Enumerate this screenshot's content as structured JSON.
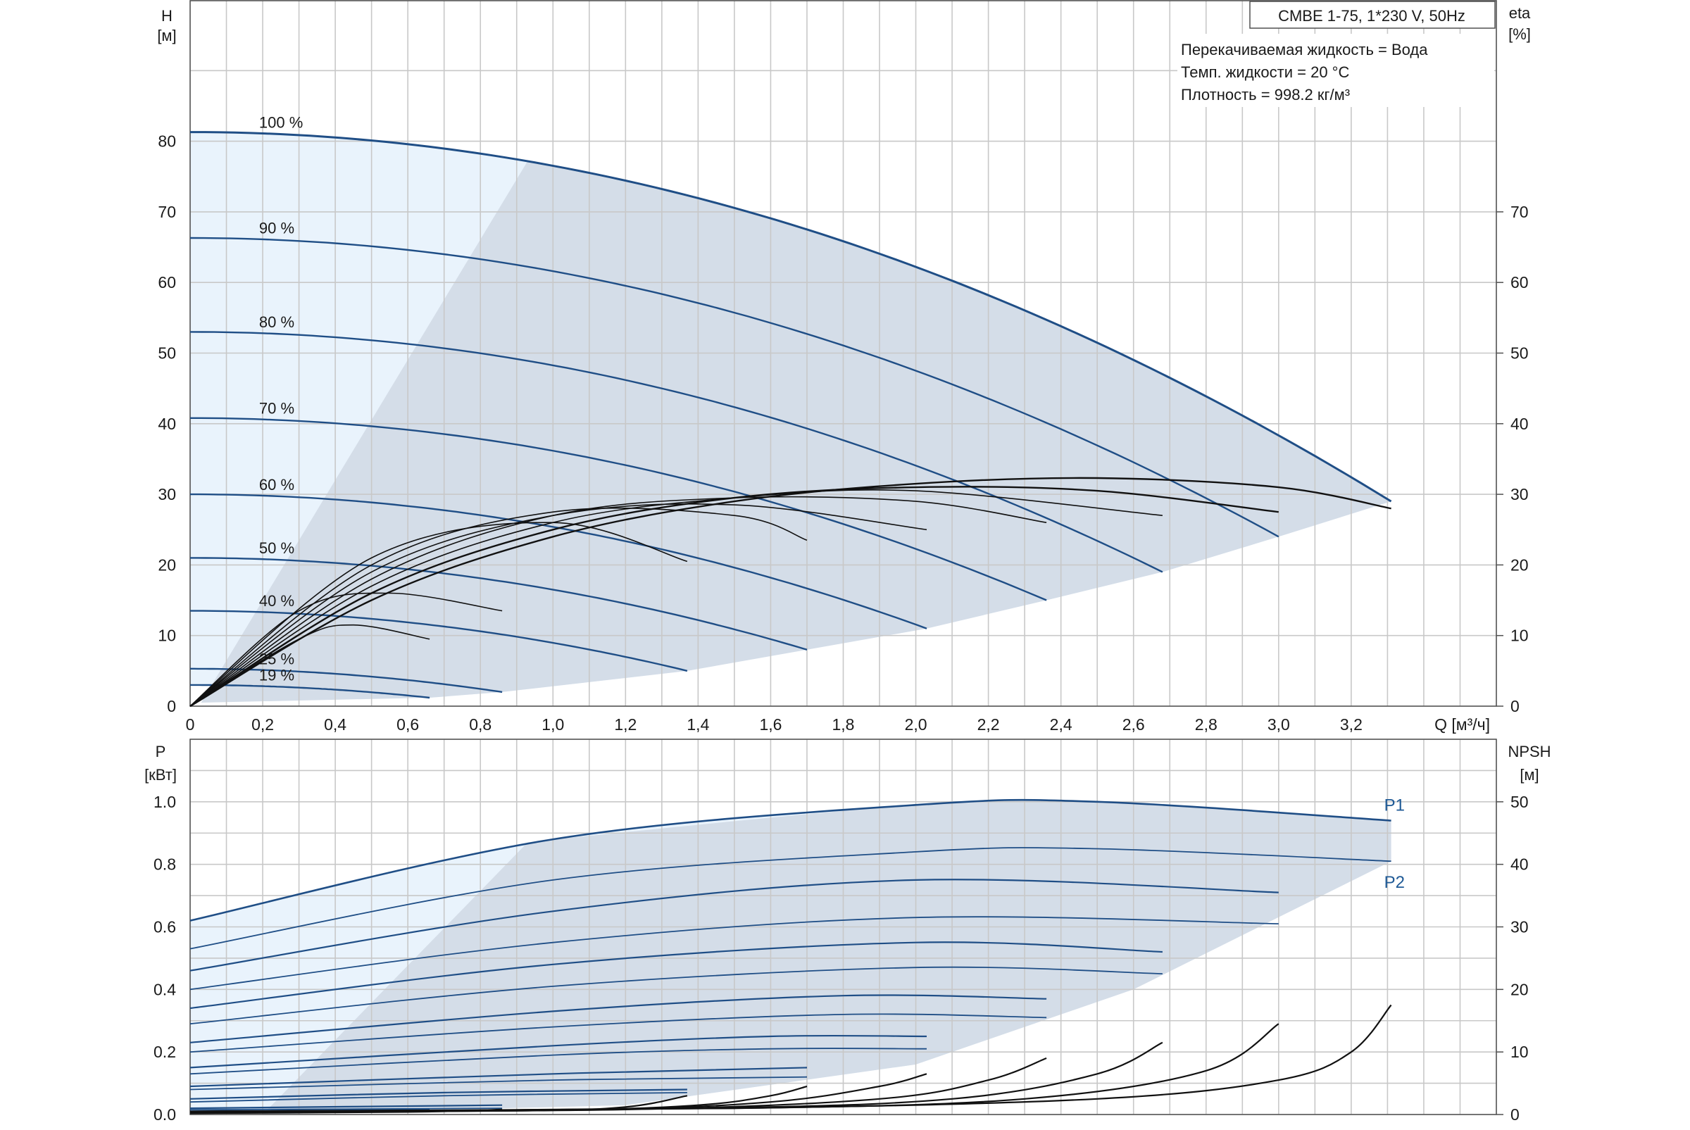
{
  "chart_data": [
    {
      "type": "line",
      "panel": "head-and-efficiency",
      "info": {
        "model": "CMBE 1-75, 1*230 V, 50Hz",
        "lines": [
          "Перекачиваемая жидкость = Вода",
          "Темп. жидкости = 20 °C",
          "Плотность = 998.2 кг/м³"
        ]
      },
      "y_left_label": [
        "H",
        "[м]"
      ],
      "y_right_label": [
        "eta",
        "[%]"
      ],
      "xlabel": "Q [м³/ч]",
      "xlim": [
        0,
        3.6
      ],
      "ylim": [
        0,
        100
      ],
      "x_ticks": [
        "0",
        "0,2",
        "0,4",
        "0,6",
        "0,8",
        "1,0",
        "1,2",
        "1,4",
        "1,6",
        "1,8",
        "2,0",
        "2,2",
        "2,4",
        "2,6",
        "2,8",
        "3,0",
        "3,2"
      ],
      "x_tick_values": [
        0,
        0.2,
        0.4,
        0.6,
        0.8,
        1.0,
        1.2,
        1.4,
        1.6,
        1.8,
        2.0,
        2.2,
        2.4,
        2.6,
        2.8,
        3.0,
        3.2
      ],
      "y_left_ticks": [
        0,
        10,
        20,
        30,
        40,
        50,
        60,
        70,
        80
      ],
      "y_right_ticks": [
        0,
        10,
        20,
        30,
        40,
        50,
        60,
        70
      ],
      "grid": true,
      "head_curves": [
        {
          "label": "100 %",
          "h0": 81.3,
          "qmax": 3.31,
          "hend": 29.0
        },
        {
          "label": "90 %",
          "h0": 66.3,
          "qmax": 3.0,
          "hend": 24.0
        },
        {
          "label": "80 %",
          "h0": 53.0,
          "qmax": 2.68,
          "hend": 19.0
        },
        {
          "label": "70 %",
          "h0": 40.8,
          "qmax": 2.36,
          "hend": 15.0
        },
        {
          "label": "60 %",
          "h0": 30.0,
          "qmax": 2.03,
          "hend": 11.0
        },
        {
          "label": "50 %",
          "h0": 21.0,
          "qmax": 1.7,
          "hend": 8.0
        },
        {
          "label": "40 %",
          "h0": 13.5,
          "qmax": 1.37,
          "hend": 5.0
        },
        {
          "label": "25 %",
          "h0": 5.3,
          "qmax": 0.86,
          "hend": 2.0
        },
        {
          "label": "19 %",
          "h0": 3.0,
          "qmax": 0.66,
          "hend": 1.2
        }
      ],
      "efficiency_curves": [
        {
          "name": "eta 100 %",
          "points": [
            [
              0,
              0
            ],
            [
              0.5,
              15
            ],
            [
              1.0,
              24
            ],
            [
              1.5,
              29
            ],
            [
              2.0,
              31.5
            ],
            [
              2.5,
              32.3
            ],
            [
              3.0,
              31
            ],
            [
              3.31,
              28
            ]
          ]
        },
        {
          "name": "eta 90 %",
          "points": [
            [
              0,
              0
            ],
            [
              0.5,
              16
            ],
            [
              1.0,
              25
            ],
            [
              1.5,
              29.5
            ],
            [
              2.0,
              31
            ],
            [
              2.5,
              30.5
            ],
            [
              3.0,
              27.5
            ]
          ]
        },
        {
          "name": "eta 80 %",
          "points": [
            [
              0,
              0
            ],
            [
              0.5,
              17
            ],
            [
              1.0,
              26
            ],
            [
              1.5,
              29.5
            ],
            [
              2.0,
              30.5
            ],
            [
              2.68,
              27
            ]
          ]
        },
        {
          "name": "eta 70 %",
          "points": [
            [
              0,
              0
            ],
            [
              0.5,
              18
            ],
            [
              1.0,
              27
            ],
            [
              1.5,
              29.5
            ],
            [
              2.0,
              29
            ],
            [
              2.36,
              26
            ]
          ]
        },
        {
          "name": "eta 60 %",
          "points": [
            [
              0,
              0
            ],
            [
              0.5,
              19
            ],
            [
              1.0,
              27
            ],
            [
              1.5,
              28.5
            ],
            [
              2.03,
              25
            ]
          ]
        },
        {
          "name": "eta 50 %",
          "points": [
            [
              0,
              0
            ],
            [
              0.5,
              20
            ],
            [
              1.0,
              27.5
            ],
            [
              1.5,
              27
            ],
            [
              1.7,
              23.5
            ]
          ]
        },
        {
          "name": "eta 40 %",
          "points": [
            [
              0,
              0
            ],
            [
              0.5,
              21
            ],
            [
              1.0,
              26
            ],
            [
              1.37,
              20.5
            ]
          ]
        },
        {
          "name": "eta 25 %",
          "points": [
            [
              0,
              0
            ],
            [
              0.3,
              13.5
            ],
            [
              0.55,
              16
            ],
            [
              0.86,
              13.5
            ]
          ]
        },
        {
          "name": "eta 19 %",
          "points": [
            [
              0,
              0
            ],
            [
              0.3,
              9.5
            ],
            [
              0.45,
              11.5
            ],
            [
              0.66,
              9.5
            ]
          ]
        }
      ]
    },
    {
      "type": "line",
      "panel": "power-and-npsh",
      "y_left_label": [
        "P",
        "[кВт]"
      ],
      "y_right_label": [
        "NPSH",
        "[м]"
      ],
      "xlim": [
        0,
        3.6
      ],
      "ylim": [
        0,
        1.2
      ],
      "y_left_ticks": [
        "0.0",
        "0.2",
        "0.4",
        "0.6",
        "0.8",
        "1.0"
      ],
      "y_left_tick_values": [
        0,
        0.2,
        0.4,
        0.6,
        0.8,
        1.0
      ],
      "y_right_ticks": [
        0,
        10,
        20,
        30,
        40,
        50
      ],
      "grid": true,
      "series_labels": {
        "p1": "P1",
        "p2": "P2"
      },
      "power_curves": [
        {
          "speed": "100 %",
          "p1": [
            [
              0,
              0.62
            ],
            [
              1.0,
              0.88
            ],
            [
              2.0,
              0.99
            ],
            [
              2.5,
              1.0
            ],
            [
              3.31,
              0.94
            ]
          ],
          "p2": [
            [
              0,
              0.53
            ],
            [
              1.0,
              0.75
            ],
            [
              2.0,
              0.84
            ],
            [
              2.5,
              0.85
            ],
            [
              3.31,
              0.81
            ]
          ]
        },
        {
          "speed": "90 %",
          "p1": [
            [
              0,
              0.46
            ],
            [
              1.0,
              0.65
            ],
            [
              2.0,
              0.75
            ],
            [
              3.0,
              0.71
            ]
          ],
          "p2": [
            [
              0,
              0.4
            ],
            [
              1.0,
              0.55
            ],
            [
              2.0,
              0.63
            ],
            [
              3.0,
              0.61
            ]
          ]
        },
        {
          "speed": "80 %",
          "p1": [
            [
              0,
              0.34
            ],
            [
              1.0,
              0.48
            ],
            [
              2.0,
              0.55
            ],
            [
              2.68,
              0.52
            ]
          ],
          "p2": [
            [
              0,
              0.29
            ],
            [
              1.0,
              0.41
            ],
            [
              2.0,
              0.47
            ],
            [
              2.68,
              0.45
            ]
          ]
        },
        {
          "speed": "70 %",
          "p1": [
            [
              0,
              0.23
            ],
            [
              1.0,
              0.33
            ],
            [
              1.8,
              0.38
            ],
            [
              2.36,
              0.37
            ]
          ],
          "p2": [
            [
              0,
              0.2
            ],
            [
              1.0,
              0.28
            ],
            [
              1.8,
              0.32
            ],
            [
              2.36,
              0.31
            ]
          ]
        },
        {
          "speed": "60 %",
          "p1": [
            [
              0,
              0.15
            ],
            [
              1.0,
              0.22
            ],
            [
              1.6,
              0.25
            ],
            [
              2.03,
              0.25
            ]
          ],
          "p2": [
            [
              0,
              0.13
            ],
            [
              1.0,
              0.19
            ],
            [
              1.6,
              0.21
            ],
            [
              2.03,
              0.21
            ]
          ]
        },
        {
          "speed": "50 %",
          "p1": [
            [
              0,
              0.09
            ],
            [
              1.0,
              0.13
            ],
            [
              1.7,
              0.15
            ]
          ],
          "p2": [
            [
              0,
              0.08
            ],
            [
              1.0,
              0.11
            ],
            [
              1.7,
              0.12
            ]
          ]
        },
        {
          "speed": "40 %",
          "p1": [
            [
              0,
              0.05
            ],
            [
              0.7,
              0.07
            ],
            [
              1.37,
              0.08
            ]
          ],
          "p2": [
            [
              0,
              0.04
            ],
            [
              0.7,
              0.06
            ],
            [
              1.37,
              0.07
            ]
          ]
        },
        {
          "speed": "25 %",
          "p1": [
            [
              0,
              0.02
            ],
            [
              0.86,
              0.03
            ]
          ],
          "p2": [
            [
              0,
              0.015
            ],
            [
              0.86,
              0.02
            ]
          ]
        },
        {
          "speed": "19 %",
          "p1": [
            [
              0,
              0.01
            ],
            [
              0.66,
              0.015
            ]
          ],
          "p2": [
            [
              0,
              0.008
            ],
            [
              0.66,
              0.012
            ]
          ]
        }
      ],
      "npsh_curves": [
        {
          "speed": "100 %",
          "points": [
            [
              0,
              0.5
            ],
            [
              1.5,
              1.0
            ],
            [
              2.5,
              2.5
            ],
            [
              3.0,
              5.5
            ],
            [
              3.2,
              10
            ],
            [
              3.31,
              17.5
            ]
          ]
        },
        {
          "speed": "90 %",
          "points": [
            [
              0,
              0.5
            ],
            [
              1.5,
              1.0
            ],
            [
              2.3,
              2.5
            ],
            [
              2.8,
              7
            ],
            [
              3.0,
              14.5
            ]
          ]
        },
        {
          "speed": "80 %",
          "points": [
            [
              0,
              0.5
            ],
            [
              1.4,
              1.0
            ],
            [
              2.1,
              2.5
            ],
            [
              2.5,
              6.5
            ],
            [
              2.68,
              11.5
            ]
          ]
        },
        {
          "speed": "70 %",
          "points": [
            [
              0,
              0.4
            ],
            [
              1.2,
              0.8
            ],
            [
              1.9,
              2.5
            ],
            [
              2.2,
              5.5
            ],
            [
              2.36,
              9
            ]
          ]
        },
        {
          "speed": "60 %",
          "points": [
            [
              0,
              0.4
            ],
            [
              1.1,
              0.8
            ],
            [
              1.6,
              2.0
            ],
            [
              1.9,
              4.5
            ],
            [
              2.03,
              6.5
            ]
          ]
        },
        {
          "speed": "50 %",
          "points": [
            [
              0,
              0.3
            ],
            [
              1.0,
              0.7
            ],
            [
              1.4,
              1.5
            ],
            [
              1.6,
              3.0
            ],
            [
              1.7,
              4.5
            ]
          ]
        },
        {
          "speed": "40 %",
          "points": [
            [
              0,
              0.3
            ],
            [
              0.9,
              0.6
            ],
            [
              1.2,
              1.2
            ],
            [
              1.37,
              3.0
            ]
          ]
        },
        {
          "speed": "25 %",
          "points": [
            [
              0,
              0.2
            ],
            [
              0.6,
              0.4
            ],
            [
              0.86,
              0.8
            ]
          ]
        },
        {
          "speed": "19 %",
          "points": [
            [
              0,
              0.2
            ],
            [
              0.66,
              0.5
            ]
          ]
        }
      ]
    }
  ]
}
